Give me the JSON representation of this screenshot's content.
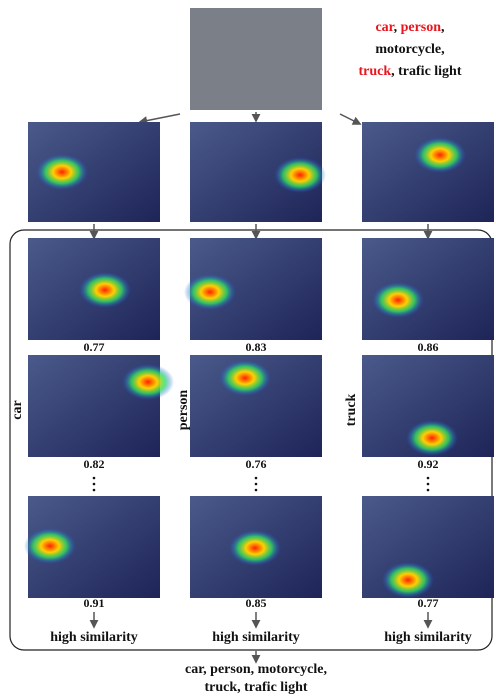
{
  "query": {
    "lines": [
      [
        {
          "text": "car",
          "color": "#e8141e"
        },
        {
          "text": ", ",
          "color": "#111111"
        },
        {
          "text": "person",
          "color": "#e8141e"
        },
        {
          "text": ",",
          "color": "#111111"
        }
      ],
      [
        {
          "text": "motorcycle,",
          "color": "#111111"
        }
      ],
      [
        {
          "text": "truck",
          "color": "#e8141e"
        },
        {
          "text": ", trafic light",
          "color": "#111111"
        }
      ]
    ]
  },
  "columns": [
    {
      "category": "car",
      "scores": [
        0.77,
        0.82,
        0.91
      ],
      "result": "high similarity"
    },
    {
      "category": "person",
      "scores": [
        0.83,
        0.76,
        0.85
      ],
      "result": "high similarity"
    },
    {
      "category": "truck",
      "scores": [
        0.86,
        0.92,
        0.77
      ],
      "result": "high similarity"
    }
  ],
  "output": {
    "lines": [
      "car, person, motorcycle,",
      "truck, trafic light"
    ]
  }
}
